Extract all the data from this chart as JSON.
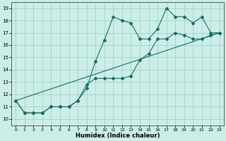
{
  "xlabel": "Humidex (Indice chaleur)",
  "bg_color": "#cceee8",
  "grid_color": "#aad4ce",
  "line_color": "#1a6b60",
  "xlim": [
    -0.5,
    23.5
  ],
  "ylim": [
    9.5,
    19.5
  ],
  "xticks": [
    0,
    1,
    2,
    3,
    4,
    5,
    6,
    7,
    8,
    9,
    10,
    11,
    12,
    13,
    14,
    15,
    16,
    17,
    18,
    19,
    20,
    21,
    22,
    23
  ],
  "yticks": [
    10,
    11,
    12,
    13,
    14,
    15,
    16,
    17,
    18,
    19
  ],
  "line1_x": [
    0,
    1,
    2,
    3,
    4,
    5,
    6,
    7,
    8,
    9,
    10,
    11,
    12,
    13,
    14,
    15,
    16,
    17,
    18,
    19,
    20,
    21,
    22,
    23
  ],
  "line1_y": [
    11.5,
    10.5,
    10.5,
    10.5,
    11.0,
    11.0,
    11.0,
    11.5,
    12.5,
    14.7,
    16.4,
    18.3,
    18.0,
    17.8,
    16.5,
    16.5,
    17.3,
    19.0,
    18.3,
    18.3,
    17.8,
    18.3,
    17.0,
    17.0
  ],
  "line2_x": [
    0,
    1,
    2,
    3,
    4,
    5,
    6,
    7,
    8,
    9,
    10,
    11,
    12,
    13,
    14,
    15,
    16,
    17,
    18,
    19,
    20,
    21,
    22,
    23
  ],
  "line2_y": [
    11.5,
    10.5,
    10.5,
    10.5,
    11.0,
    11.0,
    11.0,
    11.5,
    12.8,
    13.3,
    13.3,
    13.3,
    13.3,
    13.5,
    14.8,
    15.3,
    16.5,
    16.5,
    17.0,
    16.8,
    16.5,
    16.5,
    16.8,
    17.0
  ],
  "line3_x": [
    0,
    23
  ],
  "line3_y": [
    11.5,
    17.0
  ]
}
